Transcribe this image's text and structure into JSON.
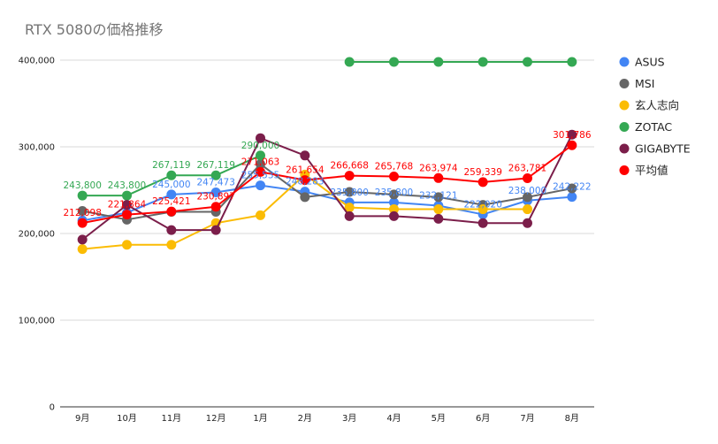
{
  "chart_data": {
    "type": "line",
    "title": "RTX 5080の価格推移",
    "xlabel": "",
    "ylabel": "",
    "categories": [
      "9月",
      "10月",
      "11月",
      "12月",
      "1月",
      "2月",
      "3月",
      "4月",
      "5月",
      "6月",
      "7月",
      "8月"
    ],
    "ylim": [
      0,
      400000
    ],
    "yticks": [
      0,
      100000,
      200000,
      300000,
      400000
    ],
    "ytick_labels": [
      "0",
      "100,000",
      "200,000",
      "300,000",
      "400,000"
    ],
    "grid": true,
    "legend_position": "right",
    "series": [
      {
        "name": "ASUS",
        "color": "#4285f4",
        "values": [
          215000,
          224000,
          245000,
          247473,
          255535,
          248283,
          235800,
          235800,
          232121,
          222020,
          238000,
          242222
        ],
        "labels": [
          "",
          "",
          "245,000",
          "247,473",
          "255,535",
          "248,283",
          "235,800",
          "235,800",
          "232,121",
          "222,020",
          "238,000",
          "242,222"
        ]
      },
      {
        "name": "MSI",
        "color": "#666666",
        "values": [
          226000,
          216000,
          225000,
          225000,
          280000,
          242000,
          248000,
          245000,
          242000,
          233000,
          242000,
          252000
        ],
        "labels": []
      },
      {
        "name": "玄人志向",
        "color": "#fbbc04",
        "values": [
          182000,
          187000,
          187000,
          212000,
          221000,
          268000,
          230000,
          228000,
          228000,
          228000,
          228000,
          null
        ],
        "labels": []
      },
      {
        "name": "ZOTAC",
        "color": "#34a853",
        "values": [
          243800,
          243800,
          267119,
          267119,
          290000,
          null,
          398000,
          398000,
          398000,
          398000,
          398000,
          398000
        ],
        "labels": [
          "243,800",
          "243,800",
          "267,119",
          "267,119",
          "290,000",
          "",
          "",
          "",
          "",
          "",
          "",
          ""
        ]
      },
      {
        "name": "GIGABYTE",
        "color": "#7b1e4a",
        "values": [
          193000,
          233000,
          204000,
          204000,
          310000,
          290000,
          220000,
          220000,
          217000,
          212000,
          212000,
          314000
        ],
        "labels": []
      },
      {
        "name": "平均値",
        "color": "#ff0000",
        "values": [
          212098,
          221864,
          225421,
          230897,
          271063,
          261654,
          266668,
          265768,
          263974,
          259339,
          263781,
          301786
        ],
        "labels": [
          "212,098",
          "221,864",
          "225,421",
          "230,897",
          "271,063",
          "261,654",
          "266,668",
          "265,768",
          "263,974",
          "259,339",
          "263,781",
          "301,786"
        ]
      }
    ]
  }
}
